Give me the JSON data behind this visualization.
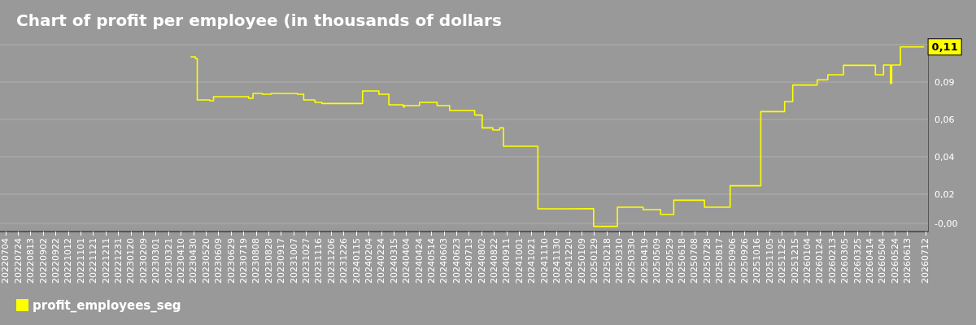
{
  "chart_data": {
    "type": "step",
    "title": "Chart of profit per employee (in thousands of dollars",
    "x": [
      "2023-04-26",
      "2023-05-03",
      "2023-05-06",
      "2023-05-26",
      "2023-06-01",
      "2023-07-27",
      "2023-08-03",
      "2023-08-18",
      "2023-09-01",
      "2023-10-13",
      "2023-10-23",
      "2023-11-10",
      "2023-11-21",
      "2024-01-25",
      "2024-02-20",
      "2024-03-07",
      "2024-03-30",
      "2024-04-01",
      "2024-04-25",
      "2024-05-23",
      "2024-06-12",
      "2024-07-22",
      "2024-08-03",
      "2024-08-20",
      "2024-08-31",
      "2024-09-06",
      "2024-10-31",
      "2024-12-12",
      "2025-01-28",
      "2025-03-07",
      "2025-04-17",
      "2025-05-15",
      "2025-06-05",
      "2025-07-24",
      "2025-09-03",
      "2025-10-22",
      "2025-11-29",
      "2025-12-12",
      "2026-01-20",
      "2026-02-06",
      "2026-03-03",
      "2026-04-23",
      "2026-05-06",
      "2026-05-17",
      "2026-05-19",
      "2026-06-02",
      "2026-07-09"
    ],
    "series": [
      {
        "name": "profit_employees_seg",
        "color": "#ffff00",
        "values": [
          0.1025,
          0.1015,
          0.076,
          0.0755,
          0.078,
          0.077,
          0.08,
          0.0795,
          0.08,
          0.0795,
          0.076,
          0.0745,
          0.0738,
          0.0815,
          0.0795,
          0.073,
          0.0717,
          0.0725,
          0.0745,
          0.0725,
          0.0695,
          0.0667,
          0.0588,
          0.0575,
          0.0588,
          0.0475,
          0.009,
          0.0091,
          -0.0018,
          0.01,
          0.0085,
          0.0055,
          0.0143,
          0.01,
          0.0232,
          0.0688,
          0.075,
          0.0852,
          0.0884,
          0.0915,
          0.0973,
          0.0915,
          0.0975,
          0.0862,
          0.0975,
          0.1086,
          0.1086
        ],
        "value_labels": [
          null,
          null,
          null,
          null,
          null,
          null,
          null,
          null,
          null,
          null,
          null,
          null,
          null,
          null,
          null,
          null,
          null,
          null,
          null,
          null,
          null,
          null,
          null,
          null,
          null,
          null,
          null,
          null,
          null,
          null,
          null,
          null,
          null,
          null,
          null,
          null,
          null,
          null,
          null,
          null,
          null,
          null,
          null,
          null,
          null,
          null,
          "0,11"
        ]
      }
    ],
    "xlim": [
      "2022-06-25",
      "2026-07-16"
    ],
    "xticks": [
      {
        "value": "2022-07-04",
        "label": "20220704"
      },
      {
        "value": "2022-07-24",
        "label": "20220724"
      },
      {
        "value": "2022-08-13",
        "label": "20220813"
      },
      {
        "value": "2022-09-02",
        "label": "20220902"
      },
      {
        "value": "2022-09-22",
        "label": "20220922"
      },
      {
        "value": "2022-10-12",
        "label": "20221012"
      },
      {
        "value": "2022-11-01",
        "label": "20221101"
      },
      {
        "value": "2022-11-21",
        "label": "20221121"
      },
      {
        "value": "2022-12-11",
        "label": "20221211"
      },
      {
        "value": "2022-12-31",
        "label": "20221231"
      },
      {
        "value": "2023-01-20",
        "label": "20230120"
      },
      {
        "value": "2023-02-09",
        "label": "20230209"
      },
      {
        "value": "2023-03-01",
        "label": "20230301"
      },
      {
        "value": "2023-03-21",
        "label": "20230321"
      },
      {
        "value": "2023-04-10",
        "label": "20230410"
      },
      {
        "value": "2023-04-30",
        "label": "20230430"
      },
      {
        "value": "2023-05-20",
        "label": "20230520"
      },
      {
        "value": "2023-06-09",
        "label": "20230609"
      },
      {
        "value": "2023-06-29",
        "label": "20230629"
      },
      {
        "value": "2023-07-19",
        "label": "20230719"
      },
      {
        "value": "2023-08-08",
        "label": "20230808"
      },
      {
        "value": "2023-08-28",
        "label": "20230828"
      },
      {
        "value": "2023-09-17",
        "label": "20230917"
      },
      {
        "value": "2023-10-07",
        "label": "20231007"
      },
      {
        "value": "2023-10-27",
        "label": "20231027"
      },
      {
        "value": "2023-11-16",
        "label": "20231116"
      },
      {
        "value": "2023-12-06",
        "label": "20231206"
      },
      {
        "value": "2023-12-26",
        "label": "20231226"
      },
      {
        "value": "2024-01-15",
        "label": "20240115"
      },
      {
        "value": "2024-02-04",
        "label": "20240204"
      },
      {
        "value": "2024-02-24",
        "label": "20240224"
      },
      {
        "value": "2024-03-15",
        "label": "20240315"
      },
      {
        "value": "2024-04-04",
        "label": "20240404"
      },
      {
        "value": "2024-04-24",
        "label": "20240424"
      },
      {
        "value": "2024-05-14",
        "label": "20240514"
      },
      {
        "value": "2024-06-03",
        "label": "20240603"
      },
      {
        "value": "2024-06-23",
        "label": "20240623"
      },
      {
        "value": "2024-07-13",
        "label": "20240713"
      },
      {
        "value": "2024-08-02",
        "label": "20240802"
      },
      {
        "value": "2024-08-22",
        "label": "20240822"
      },
      {
        "value": "2024-09-11",
        "label": "20240911"
      },
      {
        "value": "2024-10-01",
        "label": "20241001"
      },
      {
        "value": "2024-10-21",
        "label": "20241021"
      },
      {
        "value": "2024-11-10",
        "label": "20241110"
      },
      {
        "value": "2024-11-30",
        "label": "20241130"
      },
      {
        "value": "2024-12-20",
        "label": "20241220"
      },
      {
        "value": "2025-01-09",
        "label": "20250109"
      },
      {
        "value": "2025-01-29",
        "label": "20250129"
      },
      {
        "value": "2025-02-18",
        "label": "20250218"
      },
      {
        "value": "2025-03-10",
        "label": "20250310"
      },
      {
        "value": "2025-03-30",
        "label": "20250330"
      },
      {
        "value": "2025-04-19",
        "label": "20250419"
      },
      {
        "value": "2025-05-09",
        "label": "20250509"
      },
      {
        "value": "2025-05-29",
        "label": "20250529"
      },
      {
        "value": "2025-06-18",
        "label": "20250618"
      },
      {
        "value": "2025-07-08",
        "label": "20250708"
      },
      {
        "value": "2025-07-28",
        "label": "20250728"
      },
      {
        "value": "2025-08-17",
        "label": "20250817"
      },
      {
        "value": "2025-09-06",
        "label": "20250906"
      },
      {
        "value": "2025-09-26",
        "label": "20250926"
      },
      {
        "value": "2025-10-16",
        "label": "20251016"
      },
      {
        "value": "2025-11-05",
        "label": "20251105"
      },
      {
        "value": "2025-11-25",
        "label": "20251125"
      },
      {
        "value": "2025-12-15",
        "label": "20251215"
      },
      {
        "value": "2026-01-04",
        "label": "20260104"
      },
      {
        "value": "2026-01-24",
        "label": "20260124"
      },
      {
        "value": "2026-02-13",
        "label": "20260213"
      },
      {
        "value": "2026-03-05",
        "label": "20260305"
      },
      {
        "value": "2026-03-25",
        "label": "20260325"
      },
      {
        "value": "2026-04-14",
        "label": "20260414"
      },
      {
        "value": "2026-05-04",
        "label": "20260504"
      },
      {
        "value": "2026-05-24",
        "label": "20260524"
      },
      {
        "value": "2026-06-13",
        "label": "20260613"
      },
      {
        "value": "2026-07-12",
        "label": "20260712"
      }
    ],
    "ylim": [
      -0.005,
      0.11
    ],
    "yticks": [
      {
        "value": 0,
        "label": "-0,00"
      },
      {
        "value": 0.018,
        "label": "0,02"
      },
      {
        "value": 0.041,
        "label": "0,04"
      },
      {
        "value": 0.064,
        "label": "0,06"
      },
      {
        "value": 0.087,
        "label": "0,09"
      },
      {
        "value": 0.11,
        "label": null
      }
    ],
    "grid": "y",
    "legend": "bottom left",
    "marker": "none",
    "line_style": "solid"
  }
}
